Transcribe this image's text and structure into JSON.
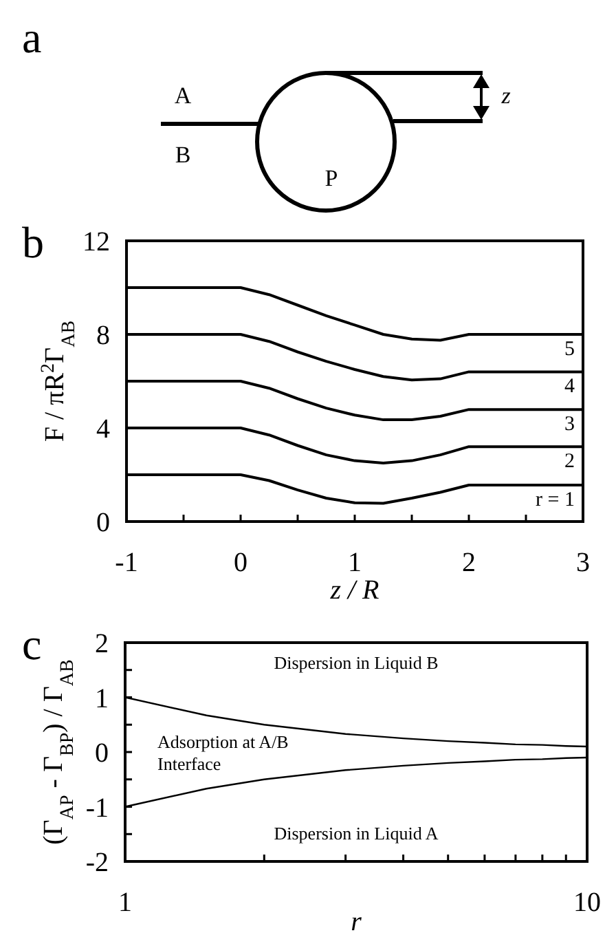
{
  "chart_data": [
    {
      "type": "other",
      "title": "a",
      "annotations": [
        "A",
        "B",
        "P",
        "z"
      ]
    },
    {
      "type": "line",
      "title": "b",
      "xlabel": "z / R",
      "ylabel": "F / πR$^{2}$Γ$_{AB}$",
      "xlim": [
        -1,
        3
      ],
      "ylim": [
        0,
        12
      ],
      "xticks": [
        -1,
        {
          "value": -0.5,
          "label": null
        },
        0,
        {
          "value": 0.5,
          "label": null
        },
        1,
        {
          "value": 1.5,
          "label": null
        },
        2,
        {
          "value": 2.5,
          "label": null
        },
        3
      ],
      "yticks": [
        0,
        4,
        8,
        12
      ],
      "x": [
        -1,
        0,
        0.25,
        0.5,
        0.75,
        1,
        1.25,
        1.5,
        1.75,
        2,
        3
      ],
      "series": [
        {
          "name": "r = 1",
          "color": "#000000",
          "values": [
            2,
            2,
            1.75,
            1.35,
            1.0,
            0.8,
            0.78,
            1.0,
            1.25,
            1.56,
            1.56
          ]
        },
        {
          "name": "2",
          "color": "#000000",
          "values": [
            4,
            4,
            3.7,
            3.25,
            2.85,
            2.6,
            2.5,
            2.6,
            2.85,
            3.2,
            3.2
          ]
        },
        {
          "name": "3",
          "color": "#000000",
          "values": [
            6,
            6,
            5.7,
            5.25,
            4.85,
            4.55,
            4.35,
            4.35,
            4.5,
            4.79,
            4.79
          ]
        },
        {
          "name": "4",
          "color": "#000000",
          "values": [
            8,
            8,
            7.7,
            7.25,
            6.85,
            6.5,
            6.2,
            6.05,
            6.1,
            6.4,
            6.4
          ]
        },
        {
          "name": "5",
          "color": "#000000",
          "values": [
            10,
            10,
            9.7,
            9.25,
            8.8,
            8.4,
            8.0,
            7.8,
            7.75,
            8.0,
            8.0
          ]
        }
      ]
    },
    {
      "type": "line",
      "title": "c",
      "xlabel": "r",
      "ylabel": "(Γ$_{AP}$ - Γ$_{BP}$) / Γ$_{AB}$",
      "log": "x",
      "xlim": [
        1,
        10
      ],
      "ylim": [
        -2,
        2
      ],
      "xticks": [
        1,
        {
          "value": 2,
          "label": null
        },
        {
          "value": 3,
          "label": null
        },
        {
          "value": 4,
          "label": null
        },
        {
          "value": 5,
          "label": null
        },
        {
          "value": 6,
          "label": null
        },
        {
          "value": 7,
          "label": null
        },
        {
          "value": 8,
          "label": null
        },
        {
          "value": 9,
          "label": null
        },
        10
      ],
      "yticks": [
        -2,
        {
          "value": -1.5,
          "label": null
        },
        -1,
        {
          "value": -0.5,
          "label": null
        },
        0,
        {
          "value": 0.5,
          "label": null
        },
        1,
        {
          "value": 1.5,
          "label": null
        },
        2
      ],
      "x": [
        1,
        1.5,
        2,
        3,
        4,
        5,
        6,
        7,
        8,
        9,
        10
      ],
      "series": [
        {
          "color": "#000000",
          "values": [
            1,
            0.67,
            0.5,
            0.33,
            0.25,
            0.2,
            0.17,
            0.14,
            0.13,
            0.11,
            0.1
          ]
        },
        {
          "color": "#000000",
          "values": [
            -1,
            -0.67,
            -0.5,
            -0.33,
            -0.25,
            -0.2,
            -0.17,
            -0.14,
            -0.13,
            -0.11,
            -0.1
          ]
        }
      ],
      "annotations": [
        "Dispersion in Liquid B",
        "Adsorption at A/B Interface",
        "Dispersion in Liquid A"
      ]
    }
  ]
}
